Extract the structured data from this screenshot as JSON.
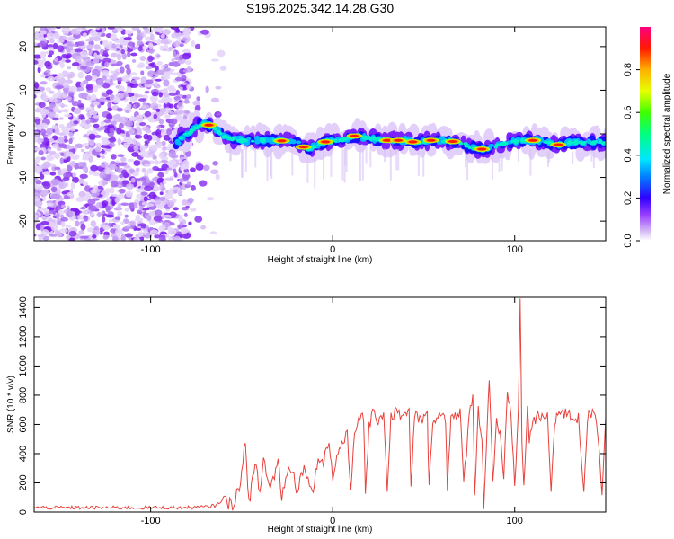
{
  "chart_data": [
    {
      "type": "heatmap",
      "title": "S196.2025.342.14.28.G30",
      "xlabel": "Height of straight line (km)",
      "ylabel": "Frequency (Hz)",
      "xlim": [
        -164,
        150
      ],
      "ylim": [
        -24.5,
        24.5
      ],
      "xticks": [
        -100,
        0,
        100
      ],
      "yticks": [
        -20,
        -10,
        0,
        10,
        20
      ],
      "colorbar": {
        "label": "Normalized spectral amplitude",
        "range": [
          0,
          1
        ],
        "ticks": [
          0.0,
          0.2,
          0.4,
          0.6,
          0.8
        ]
      },
      "ridge_x": [
        -84,
        -78,
        -72,
        -68,
        -64,
        -58,
        -50,
        -40,
        -30,
        -20,
        -14,
        -8,
        -2,
        4,
        12,
        20,
        30,
        40,
        46,
        54,
        62,
        70,
        76,
        82,
        88,
        96,
        102,
        106,
        112,
        118,
        124,
        132,
        140,
        150
      ],
      "ridge_y": [
        -1,
        0.5,
        2.5,
        2,
        1,
        -1,
        -1.5,
        -1.5,
        -1.5,
        -2,
        -3.5,
        -2.5,
        -1.5,
        -1.5,
        -0.5,
        -1,
        -1.5,
        -1.5,
        -2,
        -1.5,
        -1.5,
        -2,
        -3,
        -3.5,
        -3,
        -2,
        -1.5,
        -1.5,
        -1.5,
        -2,
        -2.5,
        -2,
        -2,
        -2
      ]
    },
    {
      "type": "line",
      "title": "",
      "xlabel": "Height of straight line (km)",
      "ylabel": "SNR (10 * v/v)",
      "xlim": [
        -164,
        150
      ],
      "ylim": [
        0,
        1470
      ],
      "xticks": [
        -100,
        0,
        100
      ],
      "yticks": [
        0,
        200,
        400,
        600,
        800,
        1000,
        1200,
        1400
      ],
      "series": [
        {
          "name": "SNR",
          "color": "#e8413c",
          "x": [
            -164,
            -130,
            -100,
            -80,
            -70,
            -64,
            -60,
            -58,
            -55,
            -52,
            -50,
            -48,
            -46,
            -44,
            -42,
            -40,
            -38,
            -35,
            -32,
            -30,
            -28,
            -25,
            -22,
            -20,
            -18,
            -15,
            -12,
            -10,
            -8,
            -5,
            -2,
            0,
            3,
            5,
            8,
            10,
            12,
            15,
            17,
            18,
            20,
            22,
            25,
            28,
            30,
            32,
            35,
            40,
            42,
            43,
            45,
            50,
            52,
            53,
            55,
            60,
            62,
            63,
            65,
            68,
            70,
            72,
            75,
            77,
            78,
            80,
            82,
            83,
            85,
            86,
            88,
            90,
            92,
            94,
            96,
            98,
            100,
            102,
            103,
            104,
            105,
            107,
            108,
            110,
            112,
            115,
            118,
            120,
            122,
            123,
            125,
            130,
            135,
            138,
            140,
            142,
            145,
            148,
            150
          ],
          "values": [
            30,
            30,
            30,
            30,
            35,
            45,
            95,
            60,
            55,
            150,
            250,
            480,
            70,
            220,
            320,
            120,
            370,
            180,
            240,
            360,
            110,
            270,
            310,
            150,
            220,
            320,
            140,
            200,
            380,
            350,
            500,
            220,
            420,
            470,
            520,
            150,
            580,
            620,
            650,
            130,
            590,
            660,
            640,
            680,
            160,
            650,
            690,
            650,
            680,
            150,
            660,
            630,
            670,
            150,
            650,
            660,
            640,
            160,
            690,
            640,
            670,
            200,
            650,
            820,
            140,
            690,
            500,
            60,
            620,
            930,
            200,
            640,
            520,
            200,
            820,
            640,
            200,
            660,
            1470,
            500,
            160,
            700,
            500,
            630,
            640,
            650,
            640,
            150,
            640,
            660,
            680,
            660,
            640,
            150,
            650,
            670,
            640,
            150,
            650
          ]
        }
      ]
    }
  ]
}
